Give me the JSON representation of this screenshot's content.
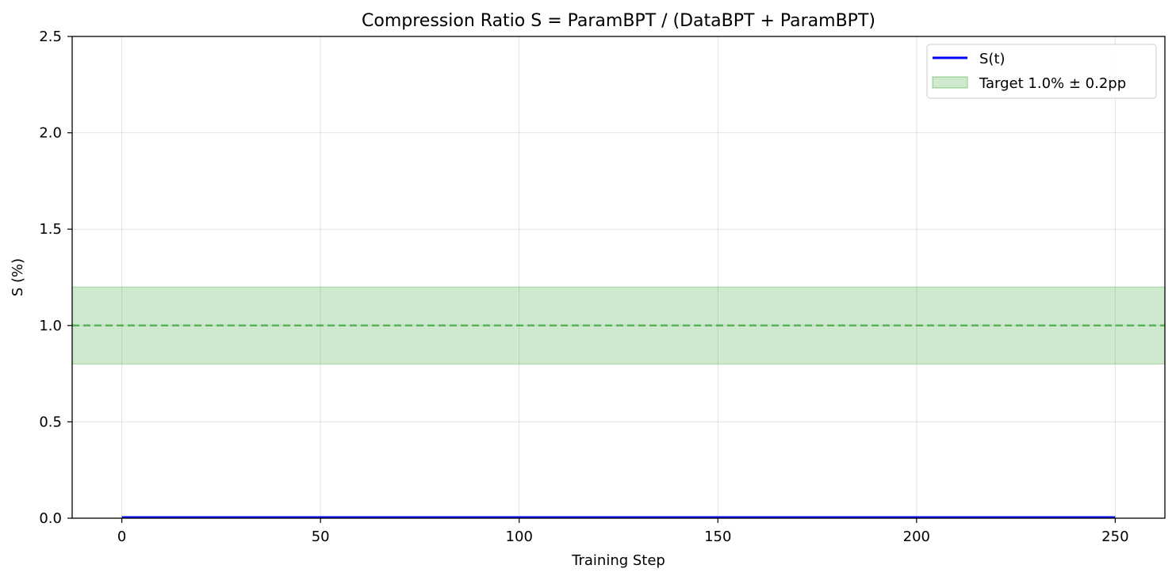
{
  "chart_data": {
    "type": "line",
    "title": "Compression Ratio S = ParamBPT / (DataBPT + ParamBPT)",
    "xlabel": "Training Step",
    "ylabel": "S (%)",
    "xlim": [
      -12.5,
      262.5
    ],
    "ylim": [
      0,
      2.5
    ],
    "xticks": [
      0,
      50,
      100,
      150,
      200,
      250
    ],
    "xtick_labels": [
      "0",
      "50",
      "100",
      "150",
      "200",
      "250"
    ],
    "yticks": [
      0,
      0.5,
      1.0,
      1.5,
      2.0,
      2.5
    ],
    "ytick_labels": [
      "0.0",
      "0.5",
      "1.0",
      "1.5",
      "2.0",
      "2.5"
    ],
    "grid": true,
    "legend_position": "top-right",
    "series": [
      {
        "name": "S(t)",
        "color": "#0000ff",
        "x": [
          0,
          10,
          20,
          30,
          40,
          50,
          60,
          70,
          80,
          90,
          100,
          110,
          120,
          130,
          140,
          150,
          160,
          170,
          180,
          190,
          200,
          210,
          220,
          230,
          240,
          250
        ],
        "y": [
          0.005,
          0.005,
          0.005,
          0.005,
          0.005,
          0.005,
          0.005,
          0.005,
          0.005,
          0.005,
          0.005,
          0.005,
          0.005,
          0.005,
          0.005,
          0.005,
          0.005,
          0.005,
          0.005,
          0.005,
          0.005,
          0.005,
          0.005,
          0.005,
          0.005,
          0.005
        ]
      }
    ],
    "target_band": {
      "name": "Target 1.0% ± 0.2pp",
      "center": 1.0,
      "low": 0.8,
      "high": 1.2,
      "fill_color": "#2ca02c",
      "line_color": "#2ca02c"
    }
  }
}
